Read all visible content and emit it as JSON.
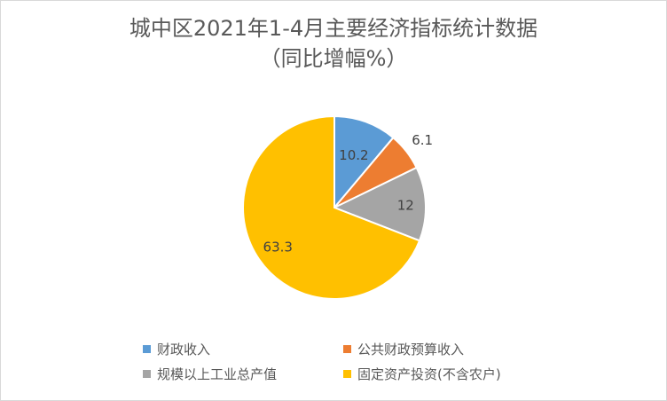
{
  "chart_data": {
    "type": "pie",
    "title_line1": "城中区2021年1-4月主要经济指标统计数据",
    "title_line2": "（同比增幅%）",
    "categories": [
      "财政收入",
      "公共财政预算收入",
      "规模以上工业总产值",
      "固定资产投资(不含农户)"
    ],
    "values": [
      10.2,
      6.1,
      12,
      63.3
    ],
    "data_labels": [
      "10.2",
      "6.1",
      "12",
      "63.3"
    ],
    "colors": [
      "#5b9bd5",
      "#ed7d31",
      "#a5a5a5",
      "#ffc000"
    ],
    "legend_position": "bottom",
    "start_angle": "top, clockwise"
  }
}
